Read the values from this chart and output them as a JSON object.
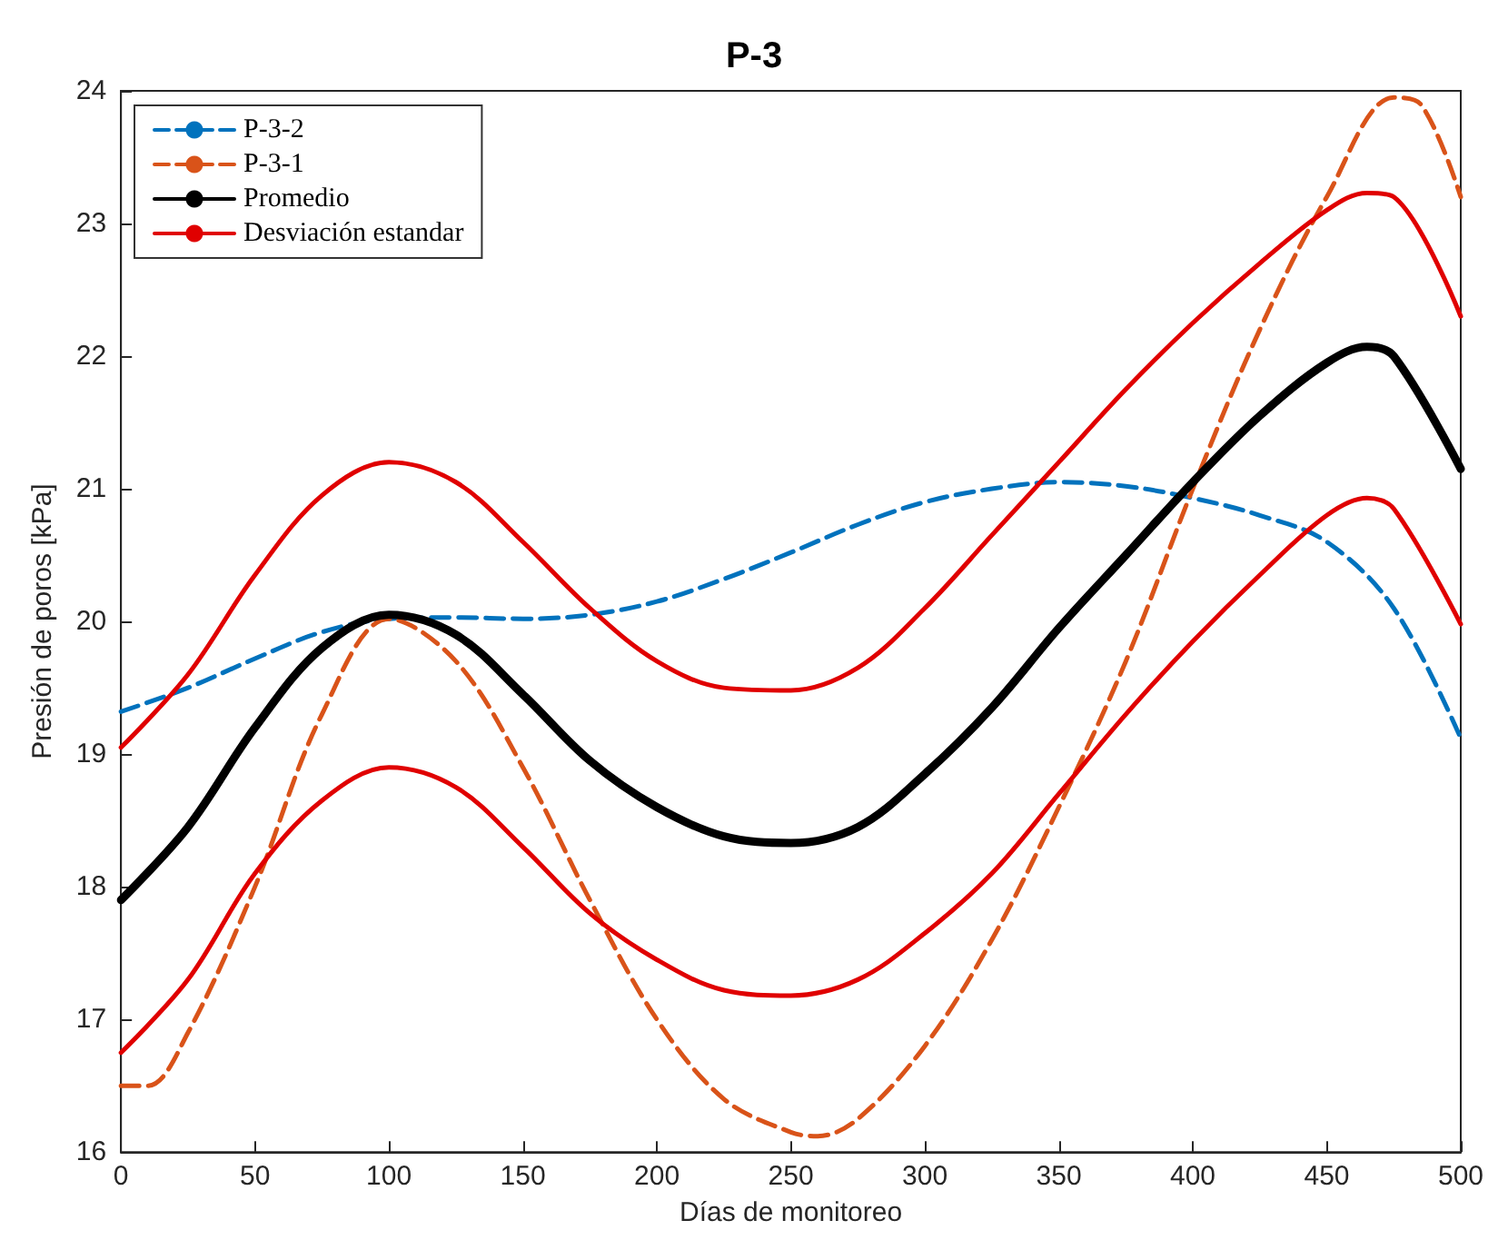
{
  "chart_data": {
    "type": "line",
    "title": "P-3",
    "xlabel": "Días de monitoreo",
    "ylabel": "Presión de poros [kPa]",
    "xlim": [
      0,
      500
    ],
    "xticks": [
      0,
      50,
      100,
      150,
      200,
      250,
      300,
      350,
      400,
      450,
      500
    ],
    "ylim": [
      16,
      24
    ],
    "yticks": [
      16,
      17,
      18,
      19,
      20,
      21,
      22,
      23,
      24
    ],
    "grid": false,
    "legend": "top left",
    "marker": "none",
    "series": [
      {
        "name": "P-3-2",
        "color": "#0072bd",
        "line_style": "dashed",
        "x": [
          0,
          25,
          50,
          75,
          100,
          125,
          150,
          175,
          200,
          225,
          250,
          275,
          300,
          325,
          350,
          375,
          400,
          425,
          450,
          475,
          500
        ],
        "values": [
          19.32,
          19.5,
          19.72,
          19.92,
          20.02,
          20.03,
          20.02,
          20.05,
          20.15,
          20.32,
          20.52,
          20.73,
          20.9,
          21.0,
          21.05,
          21.02,
          20.93,
          20.8,
          20.6,
          20.1,
          19.12
        ]
      },
      {
        "name": "P-3-1",
        "color": "#d95319",
        "line_style": "dashed",
        "x": [
          0,
          10,
          25,
          50,
          75,
          100,
          125,
          150,
          175,
          200,
          225,
          250,
          260,
          275,
          300,
          325,
          350,
          375,
          400,
          425,
          450,
          475,
          485,
          500
        ],
        "values": [
          16.5,
          16.5,
          16.9,
          18.0,
          19.3,
          20.02,
          19.7,
          18.9,
          17.9,
          17.0,
          16.4,
          16.15,
          16.12,
          16.25,
          16.8,
          17.6,
          18.6,
          19.7,
          21.0,
          22.2,
          23.2,
          23.95,
          23.9,
          23.2
        ]
      },
      {
        "name": "Promedio",
        "color": "#000000",
        "line_style": "solid",
        "x": [
          0,
          25,
          50,
          75,
          100,
          125,
          150,
          175,
          200,
          225,
          250,
          275,
          300,
          325,
          350,
          375,
          400,
          425,
          450,
          465,
          475,
          500
        ],
        "values": [
          17.9,
          18.45,
          19.2,
          19.8,
          20.05,
          19.9,
          19.45,
          18.95,
          18.6,
          18.38,
          18.33,
          18.45,
          18.85,
          19.35,
          19.95,
          20.5,
          21.05,
          21.55,
          21.95,
          22.07,
          22.0,
          21.15
        ]
      },
      {
        "name": "Desviación estandar",
        "color": "#e00000",
        "line_style": "solid",
        "x": [
          0,
          25,
          50,
          75,
          100,
          125,
          150,
          175,
          200,
          225,
          250,
          275,
          300,
          325,
          350,
          375,
          400,
          425,
          450,
          465,
          475,
          500
        ],
        "values": [
          19.05,
          19.6,
          20.35,
          20.95,
          21.2,
          21.05,
          20.6,
          20.1,
          19.7,
          19.5,
          19.48,
          19.65,
          20.1,
          20.65,
          21.2,
          21.75,
          22.25,
          22.7,
          23.1,
          23.23,
          23.2,
          22.3
        ]
      },
      {
        "color": "#e00000",
        "line_style": "solid",
        "x": [
          0,
          25,
          50,
          75,
          100,
          125,
          150,
          175,
          200,
          225,
          250,
          275,
          300,
          325,
          350,
          375,
          400,
          425,
          450,
          465,
          475,
          500
        ],
        "values": [
          16.75,
          17.3,
          18.1,
          18.65,
          18.9,
          18.75,
          18.3,
          17.8,
          17.45,
          17.22,
          17.18,
          17.3,
          17.65,
          18.1,
          18.7,
          19.3,
          19.85,
          20.35,
          20.8,
          20.93,
          20.85,
          19.98
        ]
      }
    ]
  }
}
